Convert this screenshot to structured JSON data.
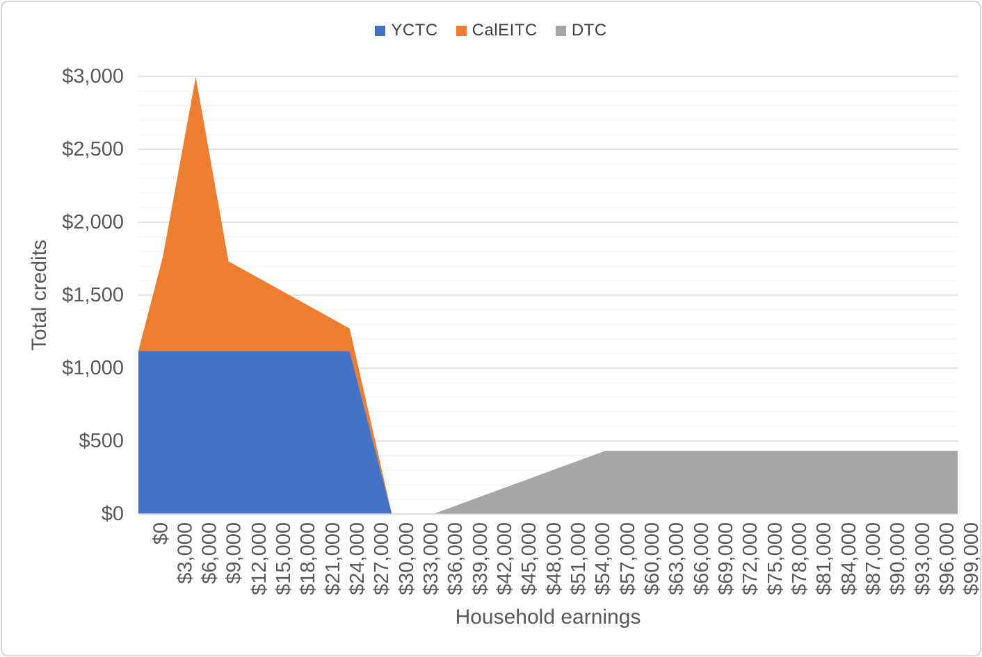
{
  "chart_data": {
    "type": "area",
    "stacked": true,
    "title": "",
    "xlabel": "Household earnings",
    "ylabel": "Total credits",
    "xlim": [
      0,
      100000
    ],
    "ylim": [
      0,
      3000
    ],
    "y_major_gridline_step": 500,
    "y_minor_gridline_step": 100,
    "x_label_step": 3000,
    "grid": "horizontal major and minor gridlines, no vertical gridlines",
    "legend_position": "top-center",
    "y_tick_labels": [
      "$0",
      "$500",
      "$1,000",
      "$1,500",
      "$2,000",
      "$2,500",
      "$3,000"
    ],
    "x_tick_labels": [
      "$0",
      "$3,000",
      "$6,000",
      "$9,000",
      "$12,000",
      "$15,000",
      "$18,000",
      "$21,000",
      "$24,000",
      "$27,000",
      "$30,000",
      "$33,000",
      "$36,000",
      "$39,000",
      "$42,000",
      "$45,000",
      "$48,000",
      "$51,000",
      "$54,000",
      "$57,000",
      "$60,000",
      "$63,000",
      "$66,000",
      "$69,000",
      "$72,000",
      "$75,000",
      "$78,000",
      "$81,000",
      "$84,000",
      "$87,000",
      "$90,000",
      "$93,000",
      "$96,000",
      "$99,000"
    ],
    "x_tick_values": [
      0,
      3000,
      6000,
      9000,
      12000,
      15000,
      18000,
      21000,
      24000,
      27000,
      30000,
      33000,
      36000,
      39000,
      42000,
      45000,
      48000,
      51000,
      54000,
      57000,
      60000,
      63000,
      66000,
      69000,
      72000,
      75000,
      78000,
      81000,
      84000,
      87000,
      90000,
      93000,
      96000,
      99000
    ],
    "y_tick_values": [
      0,
      500,
      1000,
      1500,
      2000,
      2500,
      3000
    ],
    "series": [
      {
        "name": "YCTC",
        "color": "#4472C4",
        "points": [
          [
            0,
            1117
          ],
          [
            25775,
            1117
          ],
          [
            30931,
            0
          ],
          [
            100000,
            0
          ]
        ]
      },
      {
        "name": "CalEITC",
        "color": "#ED7D31",
        "points": [
          [
            0,
            0
          ],
          [
            3000,
            650
          ],
          [
            7000,
            1880
          ],
          [
            11000,
            615
          ],
          [
            25775,
            155
          ],
          [
            30931,
            0
          ],
          [
            100000,
            0
          ]
        ]
      },
      {
        "name": "DTC",
        "color": "#A6A6A6",
        "points": [
          [
            0,
            0
          ],
          [
            36000,
            0
          ],
          [
            57000,
            433
          ],
          [
            100000,
            433
          ]
        ]
      }
    ],
    "annotations": {
      "peak_total_at_7000": 2997,
      "yctc_flat_value": 1117,
      "dtc_plateau_value": 433
    }
  },
  "colors": {
    "major_gridline": "#D9D9D9",
    "minor_gridline": "#F2F2F2",
    "axis_line": "#CFCFCF",
    "tick_text": "#595959",
    "legend_text": "#404040",
    "frame_border": "#D6D6D6"
  }
}
